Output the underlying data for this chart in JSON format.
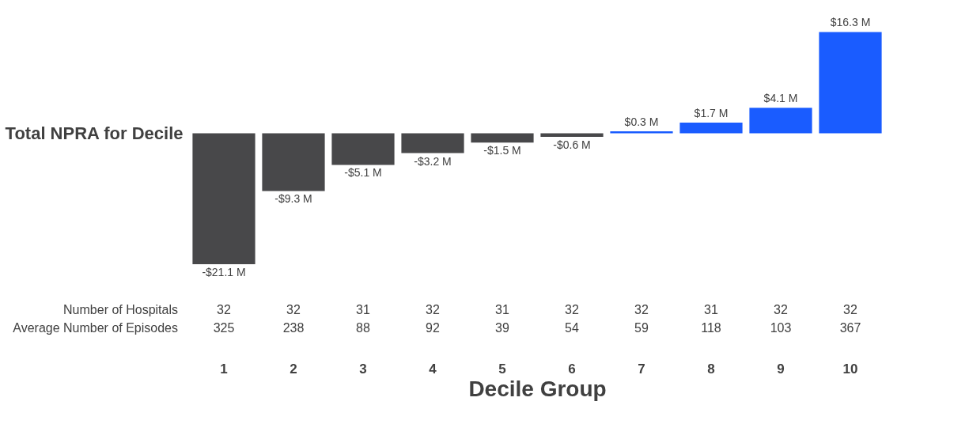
{
  "chart_data": {
    "type": "bar",
    "ylabel": "Total NPRA for Decile",
    "xlabel": "Decile Group",
    "categories": [
      "1",
      "2",
      "3",
      "4",
      "5",
      "6",
      "7",
      "8",
      "9",
      "10"
    ],
    "values": [
      -21.1,
      -9.3,
      -5.1,
      -3.2,
      -1.5,
      -0.6,
      0.3,
      1.7,
      4.1,
      16.3
    ],
    "colors": [
      "#48484a",
      "#48484a",
      "#48484a",
      "#48484a",
      "#48484a",
      "#48484a",
      "#1a5cff",
      "#1a5cff",
      "#1a5cff",
      "#1a5cff"
    ],
    "value_labels": [
      "-$21.1 M",
      "-$9.3 M",
      "-$5.1 M",
      "-$3.2 M",
      "-$1.5 M",
      "-$0.6 M",
      "$0.3 M",
      "$1.7 M",
      "$4.1 M",
      "$16.3 M"
    ],
    "annotations": [
      "Number of Hospitals",
      "32",
      "32",
      "31",
      "32",
      "31",
      "32",
      "32",
      "31",
      "32",
      "32",
      "Average Number of Episodes",
      "325",
      "238",
      "88",
      "92",
      "39",
      "54",
      "59",
      "118",
      "103",
      "367"
    ],
    "tick_labels": "x",
    "grid": false
  }
}
